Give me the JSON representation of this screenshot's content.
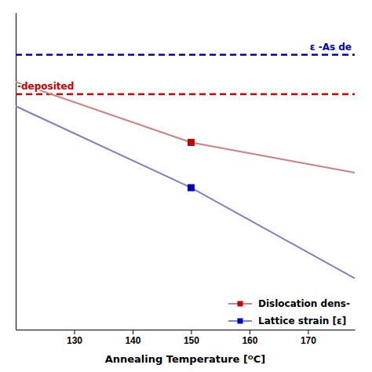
{
  "chart_data": {
    "type": "line",
    "xlabel": "Annealing Temperature [ᴼC]",
    "x": [
      120,
      150,
      178
    ],
    "xlim": [
      120,
      178
    ],
    "xticks": [
      130,
      140,
      150,
      160,
      170
    ],
    "ylim": [
      0.0,
      1.05
    ],
    "tick_labels": "x",
    "grid": false,
    "legend": "lower right",
    "series": [
      {
        "name": "Dislocation dens-",
        "color": "#d08080",
        "values": [
          0.82,
          0.62,
          0.52
        ]
      },
      {
        "name": "Lattice strain [ε]",
        "color": "#8080c8",
        "values": [
          0.74,
          0.47,
          0.17
        ]
      },
      {
        "type": "scatter",
        "marker": "square",
        "color": "#cc0000",
        "x": [
          150
        ],
        "values": [
          0.62
        ]
      },
      {
        "type": "scatter",
        "marker": "square",
        "color": "#0000cc",
        "x": [
          150
        ],
        "values": [
          0.47
        ]
      },
      {
        "color": "#0000cc",
        "line_style": "dashed",
        "x": [
          120,
          178
        ],
        "values": [
          0.91,
          0.91
        ]
      },
      {
        "color": "#cc0000",
        "line_style": "dashed",
        "x": [
          120,
          178
        ],
        "values": [
          0.78,
          0.78
        ]
      }
    ],
    "annotations": [
      {
        "text": "ε -As de",
        "color": "#0000cc",
        "x": 178,
        "y": 0.91
      },
      {
        "text": "-deposited",
        "color": "#cc0000",
        "x": 120,
        "y": 0.78
      }
    ]
  }
}
